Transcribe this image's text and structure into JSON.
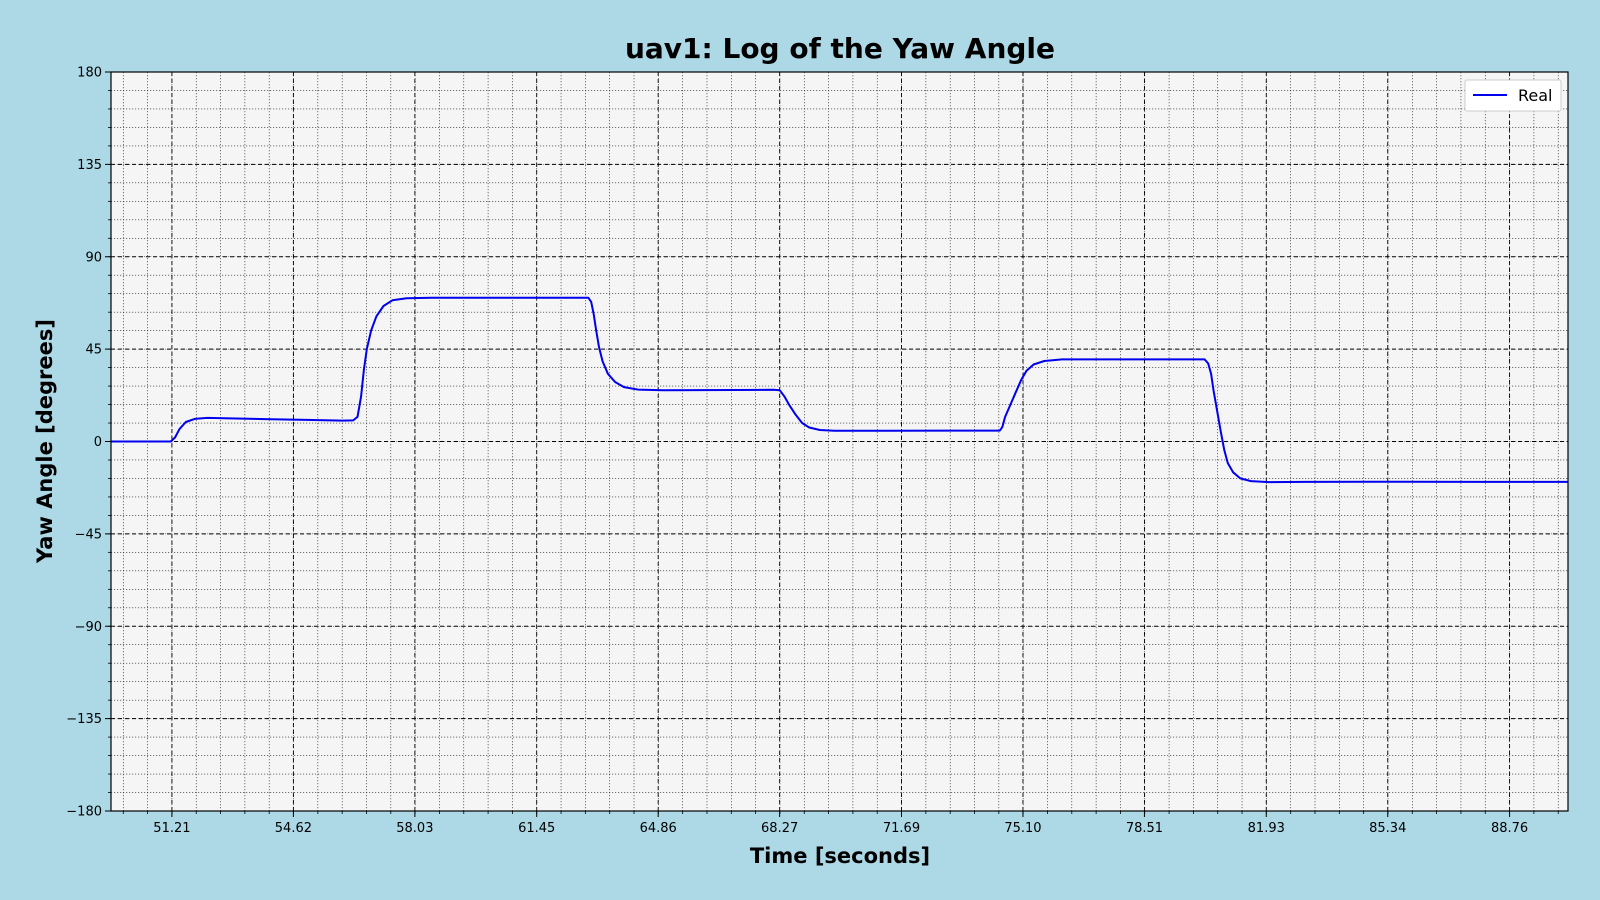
{
  "chart_data": {
    "type": "line",
    "title": "uav1: Log of the Yaw Angle",
    "xlabel": "Time [seconds]",
    "ylabel": "Yaw Angle [degrees]",
    "xlim": [
      49.5,
      90.4
    ],
    "ylim": [
      -180,
      180
    ],
    "x_tick_labels": [
      "51.21",
      "54.62",
      "58.03",
      "61.45",
      "64.86",
      "68.27",
      "71.69",
      "75.10",
      "78.51",
      "81.93",
      "85.34",
      "88.76"
    ],
    "x_ticks": [
      51.21,
      54.62,
      58.03,
      61.45,
      64.86,
      68.27,
      71.69,
      75.1,
      78.51,
      81.93,
      85.34,
      88.76
    ],
    "y_tick_labels": [
      "180",
      "135",
      "90",
      "45",
      "0",
      "−45",
      "−90",
      "−135",
      "−180"
    ],
    "y_ticks": [
      180,
      135,
      90,
      45,
      0,
      -45,
      -90,
      -135,
      -180
    ],
    "grid": true,
    "minor_grid": true,
    "legend": "top-right",
    "colors": {
      "background": "#add8e6",
      "plot_background": "#f5f5f5",
      "series": "#0000ee"
    },
    "series": [
      {
        "name": "Real",
        "color": "#0000ee",
        "points": [
          [
            49.5,
            0
          ],
          [
            51.18,
            0
          ],
          [
            51.3,
            2
          ],
          [
            51.42,
            6
          ],
          [
            51.6,
            9.5
          ],
          [
            51.85,
            11
          ],
          [
            52.2,
            11.5
          ],
          [
            53.0,
            11.2
          ],
          [
            54.0,
            10.8
          ],
          [
            55.0,
            10.5
          ],
          [
            56.0,
            10.2
          ],
          [
            56.3,
            10.3
          ],
          [
            56.42,
            12
          ],
          [
            56.52,
            22
          ],
          [
            56.6,
            35
          ],
          [
            56.68,
            45
          ],
          [
            56.8,
            54
          ],
          [
            56.95,
            61
          ],
          [
            57.15,
            66
          ],
          [
            57.4,
            68.8
          ],
          [
            57.8,
            69.8
          ],
          [
            58.5,
            70
          ],
          [
            60.0,
            70
          ],
          [
            62.5,
            70
          ],
          [
            62.9,
            70
          ],
          [
            62.98,
            68
          ],
          [
            63.05,
            62
          ],
          [
            63.12,
            54
          ],
          [
            63.2,
            46
          ],
          [
            63.3,
            39
          ],
          [
            63.45,
            33
          ],
          [
            63.65,
            29
          ],
          [
            63.9,
            26.5
          ],
          [
            64.3,
            25.3
          ],
          [
            65.0,
            25
          ],
          [
            67.0,
            25.1
          ],
          [
            68.1,
            25.2
          ],
          [
            68.27,
            25
          ],
          [
            68.4,
            22
          ],
          [
            68.55,
            17.5
          ],
          [
            68.72,
            13
          ],
          [
            68.9,
            9
          ],
          [
            69.1,
            6.8
          ],
          [
            69.4,
            5.6
          ],
          [
            69.8,
            5.2
          ],
          [
            71.0,
            5.2
          ],
          [
            73.0,
            5.3
          ],
          [
            74.45,
            5.3
          ],
          [
            74.52,
            7
          ],
          [
            74.6,
            12
          ],
          [
            74.75,
            18
          ],
          [
            74.9,
            24
          ],
          [
            75.05,
            30
          ],
          [
            75.2,
            34.5
          ],
          [
            75.4,
            37.5
          ],
          [
            75.7,
            39.2
          ],
          [
            76.2,
            40
          ],
          [
            78.0,
            40
          ],
          [
            79.8,
            40
          ],
          [
            80.2,
            40
          ],
          [
            80.3,
            38
          ],
          [
            80.38,
            33
          ],
          [
            80.45,
            25
          ],
          [
            80.55,
            15
          ],
          [
            80.65,
            5
          ],
          [
            80.75,
            -4
          ],
          [
            80.85,
            -10.5
          ],
          [
            81.0,
            -15
          ],
          [
            81.2,
            -18
          ],
          [
            81.5,
            -19.3
          ],
          [
            82.0,
            -19.8
          ],
          [
            83.0,
            -19.7
          ],
          [
            85.0,
            -19.6
          ],
          [
            88.0,
            -19.7
          ],
          [
            90.4,
            -19.7
          ]
        ]
      }
    ]
  }
}
